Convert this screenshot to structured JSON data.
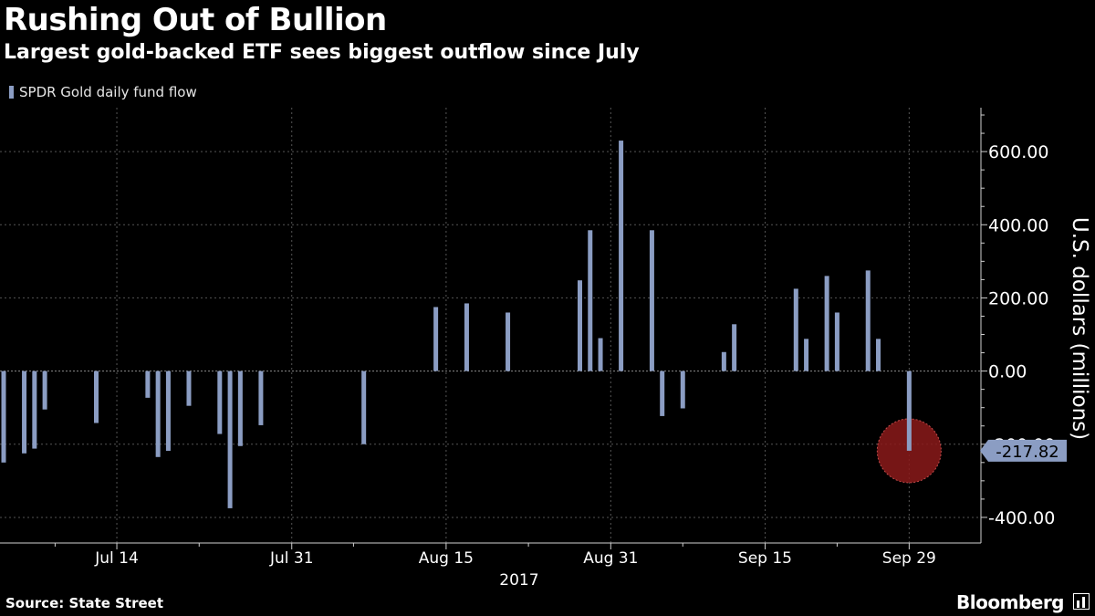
{
  "chart_data": {
    "type": "bar",
    "title": "Rushing Out of Bullion",
    "subtitle": "Largest gold-backed ETF sees biggest outflow since July",
    "ylabel": "U.S. dollars (millions)",
    "year_label": "2017",
    "ylim": [
      -470,
      720
    ],
    "yticks": [
      {
        "value": 600,
        "label": "600.00"
      },
      {
        "value": 400,
        "label": "400.00"
      },
      {
        "value": 200,
        "label": "200.00"
      },
      {
        "value": 0,
        "label": "0.00"
      },
      {
        "value": -200,
        "label": "-200.00"
      },
      {
        "value": -400,
        "label": "-400.00"
      }
    ],
    "xlim": [
      "2017-07-03",
      "2017-10-05"
    ],
    "xticks": [
      {
        "date": "2017-07-14",
        "label": "Jul 14"
      },
      {
        "date": "2017-07-31",
        "label": "Jul 31"
      },
      {
        "date": "2017-08-15",
        "label": "Aug 15"
      },
      {
        "date": "2017-08-31",
        "label": "Aug 31"
      },
      {
        "date": "2017-09-15",
        "label": "Sep 15"
      },
      {
        "date": "2017-09-29",
        "label": "Sep 29"
      }
    ],
    "grid_dates": [
      "2017-07-14",
      "2017-07-31",
      "2017-08-15",
      "2017-08-31",
      "2017-09-15",
      "2017-09-29"
    ],
    "minor_dates": [
      "2017-07-08",
      "2017-07-22",
      "2017-08-06",
      "2017-08-23",
      "2017-09-07",
      "2017-09-22"
    ],
    "legend": {
      "position": "top-left"
    },
    "series": [
      {
        "name": "SPDR Gold daily fund flow",
        "color": "#8b9dc3",
        "points": [
          {
            "x": "2017-07-03",
            "y": -250
          },
          {
            "x": "2017-07-05",
            "y": -225
          },
          {
            "x": "2017-07-06",
            "y": -212
          },
          {
            "x": "2017-07-07",
            "y": -105
          },
          {
            "x": "2017-07-12",
            "y": -142
          },
          {
            "x": "2017-07-17",
            "y": -73
          },
          {
            "x": "2017-07-18",
            "y": -235
          },
          {
            "x": "2017-07-19",
            "y": -218
          },
          {
            "x": "2017-07-21",
            "y": -95
          },
          {
            "x": "2017-07-24",
            "y": -172
          },
          {
            "x": "2017-07-25",
            "y": -375
          },
          {
            "x": "2017-07-26",
            "y": -205
          },
          {
            "x": "2017-07-28",
            "y": -148
          },
          {
            "x": "2017-08-07",
            "y": -200
          },
          {
            "x": "2017-08-14",
            "y": 175
          },
          {
            "x": "2017-08-17",
            "y": 185
          },
          {
            "x": "2017-08-21",
            "y": 160
          },
          {
            "x": "2017-08-28",
            "y": 248
          },
          {
            "x": "2017-08-29",
            "y": 385
          },
          {
            "x": "2017-08-30",
            "y": 90
          },
          {
            "x": "2017-09-01",
            "y": 630
          },
          {
            "x": "2017-09-04",
            "y": 385
          },
          {
            "x": "2017-09-05",
            "y": -123
          },
          {
            "x": "2017-09-07",
            "y": -102
          },
          {
            "x": "2017-09-11",
            "y": 52
          },
          {
            "x": "2017-09-12",
            "y": 128
          },
          {
            "x": "2017-09-18",
            "y": 225
          },
          {
            "x": "2017-09-19",
            "y": 88
          },
          {
            "x": "2017-09-21",
            "y": 260
          },
          {
            "x": "2017-09-22",
            "y": 160
          },
          {
            "x": "2017-09-25",
            "y": 275
          },
          {
            "x": "2017-09-26",
            "y": 88
          },
          {
            "x": "2017-09-29",
            "y": -217.82
          }
        ]
      }
    ],
    "annotation": {
      "x": "2017-09-29",
      "y": -217.82,
      "label": "-217.82",
      "highlight_color": "#8b1a1a"
    }
  },
  "footer": {
    "source": "Source: State Street",
    "brand": "Bloomberg"
  }
}
